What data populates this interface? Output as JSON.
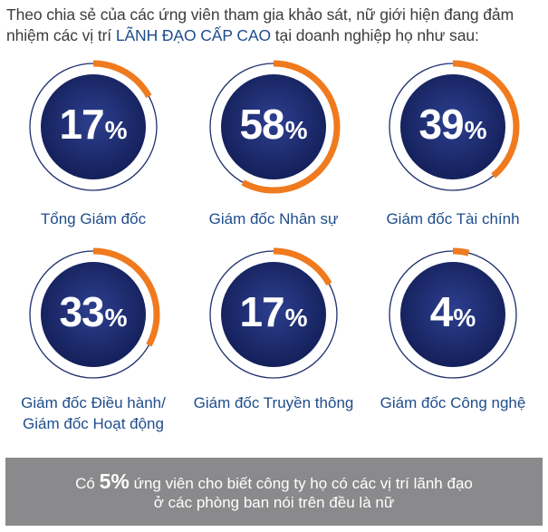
{
  "intro": {
    "before": "Theo chia sẻ của các ứng viên tham gia khảo sát, nữ giới hiện đang đảm nhiệm các vị trí ",
    "highlight": "LÃNH ĐẠO CẤP CAO",
    "after": " tại doanh nghiệp họ như sau:"
  },
  "colors": {
    "disc_center": "#2d3f8f",
    "disc_edge": "#14205a",
    "accent_arc": "#f07a1e",
    "thin_ring": "#1f2f6e",
    "label_text": "#1f4d8c",
    "banner_bg": "#8a8a8c"
  },
  "chart_data": {
    "type": "donut-gauges",
    "unit": "%",
    "items": [
      {
        "label": "Tổng Giám đốc",
        "value": 17
      },
      {
        "label": "Giám đốc Nhân sự",
        "value": 58
      },
      {
        "label": "Giám đốc Tài chính",
        "value": 39
      },
      {
        "label": "Giám đốc Điều hành/\nGiám đốc Hoạt động",
        "value": 33
      },
      {
        "label": "Giám đốc Truyền thông",
        "value": 17
      },
      {
        "label": "Giám đốc Công nghệ",
        "value": 4
      }
    ]
  },
  "banner": {
    "prefix": "Có ",
    "value": "5%",
    "suffix": " ứng viên cho biết công ty họ có các vị trí lãnh đạo",
    "line2": "ở các phòng ban nói trên đều là nữ"
  }
}
